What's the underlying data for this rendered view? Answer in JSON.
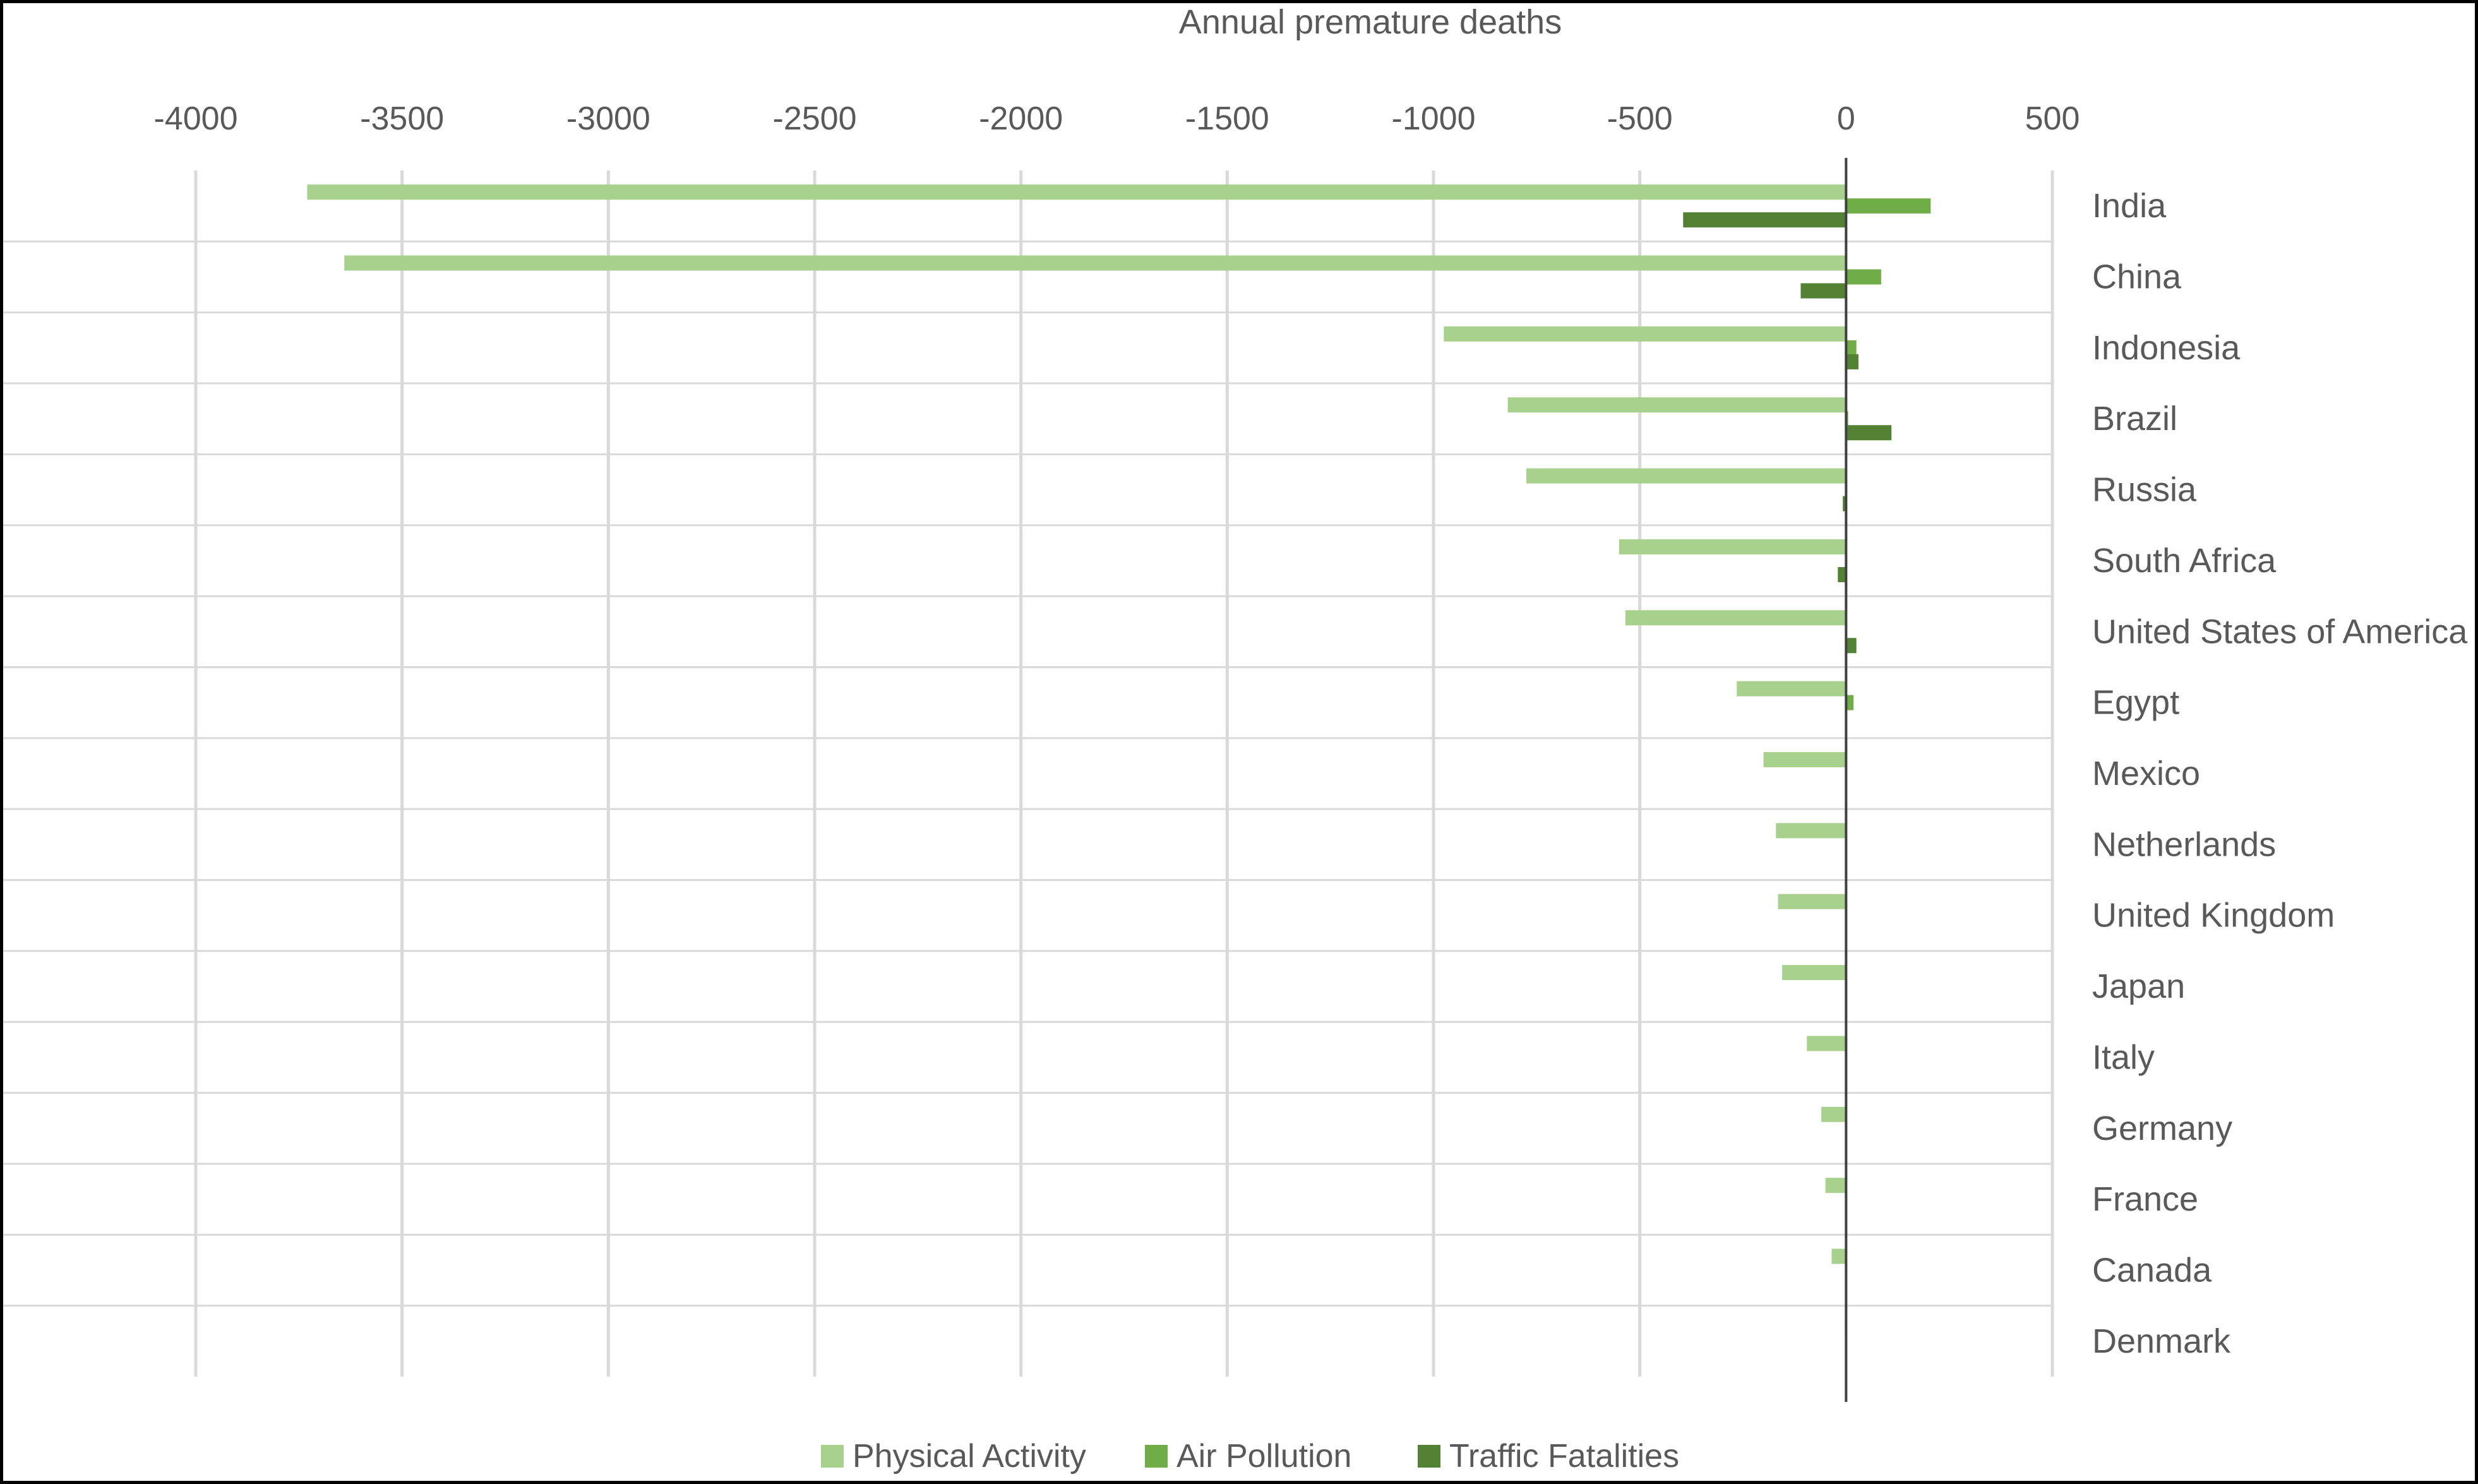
{
  "chart_data": {
    "type": "bar",
    "orientation": "horizontal",
    "title": "",
    "xlabel": "Annual premature deaths",
    "ylabel": "",
    "xlim": [
      -4000,
      500
    ],
    "xticks": [
      -4000,
      -3500,
      -3000,
      -2500,
      -2000,
      -1500,
      -1000,
      -500,
      0,
      500
    ],
    "xtick_labels": [
      "-4000",
      "-3500",
      "-3000",
      "-2500",
      "-2000",
      "-1500",
      "-1000",
      "-500",
      "0",
      "500"
    ],
    "x_axis_position": "top",
    "category_axis_position": "right",
    "grid": "vertical",
    "legend_position": "bottom",
    "categories": [
      "India",
      "China",
      "Indonesia",
      "Brazil",
      "Russia",
      "South Africa",
      "United States of America",
      "Egypt",
      "Mexico",
      "Netherlands",
      "United Kingdom",
      "Japan",
      "Italy",
      "Germany",
      "France",
      "Canada",
      "Denmark"
    ],
    "series": [
      {
        "name": "Physical Activity",
        "color": "#a9d18e",
        "values": [
          -3730,
          -3640,
          -975,
          -820,
          -775,
          -550,
          -535,
          -265,
          -200,
          -170,
          -165,
          -155,
          -95,
          -60,
          -50,
          -35,
          -3
        ]
      },
      {
        "name": "Air Pollution",
        "color": "#70ad47",
        "values": [
          205,
          85,
          25,
          5,
          0,
          0,
          0,
          18,
          0,
          0,
          0,
          0,
          0,
          0,
          0,
          0,
          0
        ]
      },
      {
        "name": "Traffic Fatalities",
        "color": "#548235",
        "values": [
          -395,
          -110,
          30,
          110,
          -8,
          -20,
          25,
          0,
          0,
          0,
          0,
          0,
          0,
          0,
          0,
          0,
          0
        ]
      }
    ]
  }
}
